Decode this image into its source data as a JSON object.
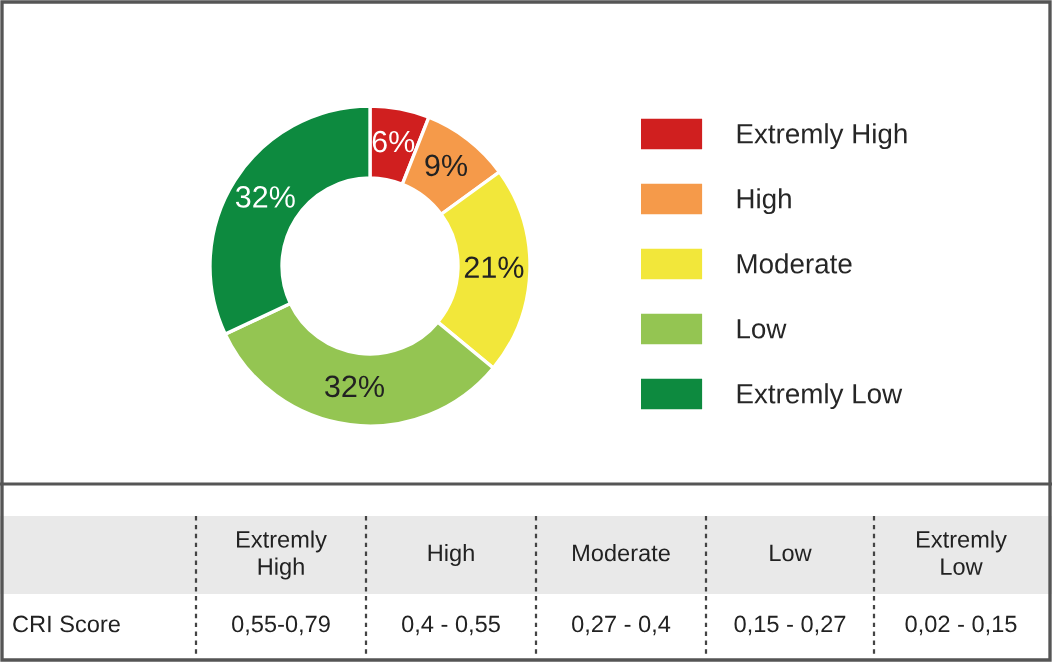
{
  "chart_data": {
    "type": "donut",
    "categories": [
      "Extremly High",
      "High",
      "Moderate",
      "Low",
      "Extremly Low"
    ],
    "values": [
      6,
      9,
      21,
      32,
      32
    ],
    "colors": [
      "#d01f1f",
      "#f59a4a",
      "#f2e73a",
      "#94c552",
      "#0d8a3f"
    ],
    "value_labels": [
      "6%",
      "9%",
      "21%",
      "32%",
      "32%"
    ],
    "legend": "right",
    "annotations": [
      "Extremly High",
      "High",
      "Moderate",
      "Low",
      "Extremly Low",
      "CRI Score",
      "0,55-0,79",
      "0,4 - 0,55",
      "0,27 - 0,4",
      "0,15 - 0,27",
      "0,02 - 0,15"
    ]
  }
}
